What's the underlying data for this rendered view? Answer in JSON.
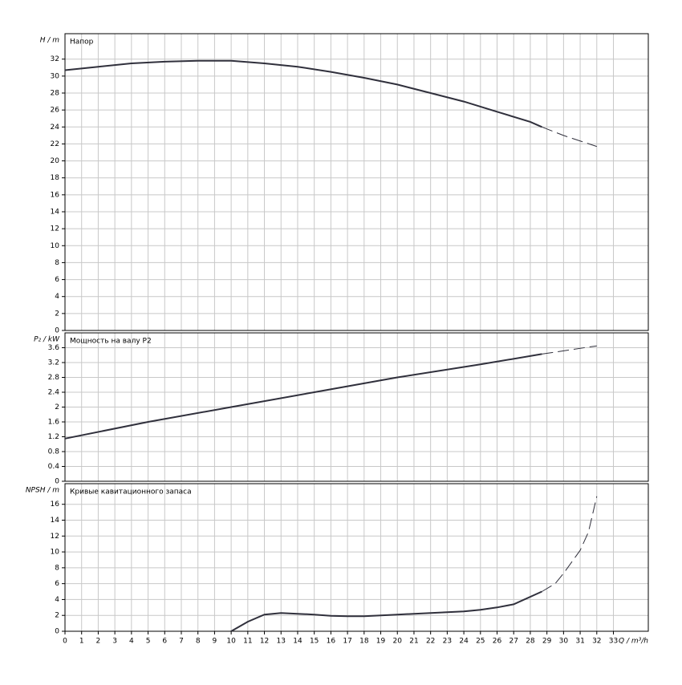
{
  "chart_data": [
    {
      "type": "line",
      "title": "Напор",
      "ylabel": "H / m",
      "xlim": [
        0,
        35.1
      ],
      "xticks": [
        0,
        1,
        2,
        3,
        4,
        5,
        6,
        7,
        8,
        9,
        10,
        11,
        12,
        13,
        14,
        15,
        16,
        17,
        18,
        19,
        20,
        21,
        22,
        23,
        24,
        25,
        26,
        27,
        28,
        29,
        30,
        31,
        32,
        33
      ],
      "ylim": [
        0,
        35
      ],
      "yticks": [
        0,
        2,
        4,
        6,
        8,
        10,
        12,
        14,
        16,
        18,
        20,
        22,
        24,
        26,
        28,
        30,
        32
      ],
      "grid": true,
      "series": [
        {
          "color": "#30303c",
          "dash": false,
          "x": [
            0,
            2,
            4,
            6,
            8,
            10,
            12,
            14,
            16,
            18,
            20,
            22,
            24,
            26,
            28,
            28.7
          ],
          "values": [
            30.7,
            31.1,
            31.5,
            31.7,
            31.8,
            31.8,
            31.5,
            31.1,
            30.5,
            29.8,
            29.0,
            28.0,
            27.0,
            25.8,
            24.6,
            24.0
          ]
        },
        {
          "color": "#30303c",
          "dash": true,
          "x": [
            28.7,
            30,
            32
          ],
          "values": [
            24.0,
            23.0,
            21.7
          ]
        }
      ]
    },
    {
      "type": "line",
      "title": "Мощность на валу P2",
      "ylabel": "P₂ / kW",
      "xlim": [
        0,
        35.1
      ],
      "xticks": [
        0,
        1,
        2,
        3,
        4,
        5,
        6,
        7,
        8,
        9,
        10,
        11,
        12,
        13,
        14,
        15,
        16,
        17,
        18,
        19,
        20,
        21,
        22,
        23,
        24,
        25,
        26,
        27,
        28,
        29,
        30,
        31,
        32,
        33
      ],
      "ylim": [
        0,
        4.0
      ],
      "yticks": [
        0,
        0.4,
        0.8,
        1.2,
        1.6,
        2,
        2.4,
        2.8,
        3.2,
        3.6
      ],
      "grid": true,
      "series": [
        {
          "color": "#30303c",
          "dash": false,
          "x": [
            0,
            5,
            10,
            15,
            20,
            25,
            28.7
          ],
          "values": [
            1.15,
            1.6,
            2.0,
            2.4,
            2.8,
            3.15,
            3.43
          ]
        },
        {
          "color": "#30303c",
          "dash": true,
          "x": [
            28.7,
            32
          ],
          "values": [
            3.43,
            3.65
          ]
        }
      ]
    },
    {
      "type": "line",
      "title": "Кривые кавитационного запаса",
      "ylabel": "NPSH / m",
      "xlabel": "Q / m³/h",
      "xlim": [
        0,
        35.1
      ],
      "xticks": [
        0,
        1,
        2,
        3,
        4,
        5,
        6,
        7,
        8,
        9,
        10,
        11,
        12,
        13,
        14,
        15,
        16,
        17,
        18,
        19,
        20,
        21,
        22,
        23,
        24,
        25,
        26,
        27,
        28,
        29,
        30,
        31,
        32,
        33
      ],
      "ylim": [
        0,
        18.6
      ],
      "yticks": [
        0,
        2,
        4,
        6,
        8,
        10,
        12,
        14,
        16
      ],
      "grid": true,
      "series": [
        {
          "color": "#30303c",
          "dash": false,
          "x": [
            10,
            11,
            12,
            13,
            14,
            15,
            16,
            17,
            18,
            19,
            20,
            22,
            24,
            25,
            26,
            27,
            28.7
          ],
          "values": [
            0,
            1.2,
            2.1,
            2.3,
            2.2,
            2.1,
            1.95,
            1.9,
            1.9,
            2.0,
            2.1,
            2.3,
            2.5,
            2.7,
            3.0,
            3.4,
            5.0
          ]
        },
        {
          "color": "#30303c",
          "dash": true,
          "x": [
            28.7,
            29.5,
            30,
            31,
            31.5,
            32
          ],
          "values": [
            5.0,
            6.0,
            7.3,
            10.2,
            12.5,
            17.0
          ]
        }
      ]
    }
  ]
}
